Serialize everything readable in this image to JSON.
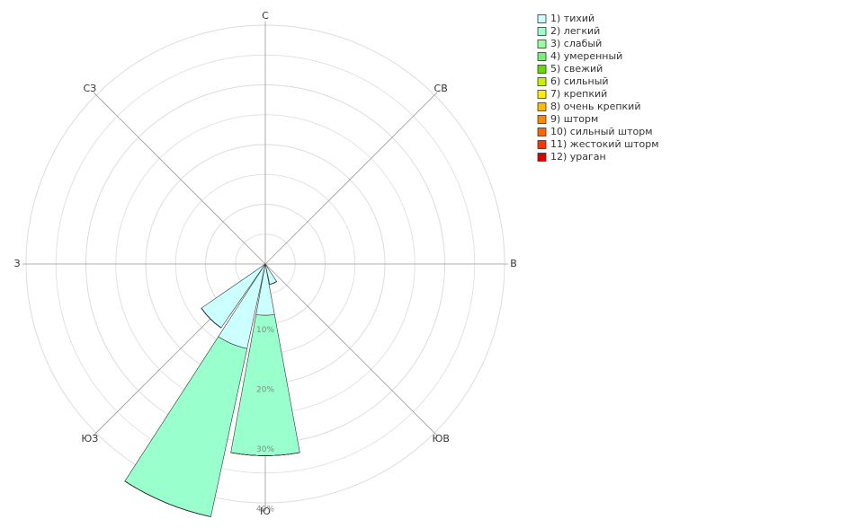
{
  "chart_data": {
    "type": "windrose",
    "categories": [
      "С",
      null,
      "СВ",
      null,
      "В",
      null,
      "ЮВ",
      null,
      "Ю",
      null,
      "ЮЗ",
      null,
      "З",
      null,
      "СЗ",
      null
    ],
    "rlim": [
      0,
      40
    ],
    "rticks": [
      {
        "value": 10,
        "label": "10%"
      },
      {
        "value": 20,
        "label": "20%"
      },
      {
        "value": 30,
        "label": "30%"
      },
      {
        "value": 40,
        "label": "40%"
      }
    ],
    "minor_rticks": [
      5,
      15,
      25,
      35
    ],
    "series": [
      {
        "name": "1) тихий",
        "color": "#ccffff",
        "values": [
          0,
          0,
          0,
          0,
          0,
          0,
          0,
          3.5,
          8.6,
          14.5,
          13,
          0,
          0,
          0,
          0,
          0
        ]
      },
      {
        "name": "2) легкий",
        "color": "#99ffcc",
        "values": [
          0,
          0,
          0,
          0,
          0,
          0,
          0,
          0,
          23.5,
          28.8,
          0,
          0,
          0,
          0,
          0,
          0
        ]
      },
      {
        "name": "3) слабый",
        "color": "#99ff99",
        "values": [
          0,
          0,
          0,
          0,
          0,
          0,
          0,
          0,
          0,
          0,
          0,
          0,
          0,
          0,
          0,
          0
        ]
      },
      {
        "name": "4) умеренный",
        "color": "#77ee77",
        "values": [
          0,
          0,
          0,
          0,
          0,
          0,
          0,
          0,
          0,
          0,
          0,
          0,
          0,
          0,
          0,
          0
        ]
      },
      {
        "name": "5) свежий",
        "color": "#66dd00",
        "values": [
          0,
          0,
          0,
          0,
          0,
          0,
          0,
          0,
          0,
          0,
          0,
          0,
          0,
          0,
          0,
          0
        ]
      },
      {
        "name": "6) сильный",
        "color": "#ccee00",
        "values": [
          0,
          0,
          0,
          0,
          0,
          0,
          0,
          0,
          0,
          0,
          0,
          0,
          0,
          0,
          0,
          0
        ]
      },
      {
        "name": "7) крепкий",
        "color": "#ffee00",
        "values": [
          0,
          0,
          0,
          0,
          0,
          0,
          0,
          0,
          0,
          0,
          0,
          0,
          0,
          0,
          0,
          0
        ]
      },
      {
        "name": "8) очень крепкий",
        "color": "#ffbb00",
        "values": [
          0,
          0,
          0,
          0,
          0,
          0,
          0,
          0,
          0,
          0,
          0,
          0,
          0,
          0,
          0,
          0
        ]
      },
      {
        "name": "9) шторм",
        "color": "#ff8800",
        "values": [
          0,
          0,
          0,
          0,
          0,
          0,
          0,
          0,
          0,
          0,
          0,
          0,
          0,
          0,
          0,
          0
        ]
      },
      {
        "name": "10) сильный шторм",
        "color": "#ff6600",
        "values": [
          0,
          0,
          0,
          0,
          0,
          0,
          0,
          0,
          0,
          0,
          0,
          0,
          0,
          0,
          0,
          0
        ]
      },
      {
        "name": "11) жестокий шторм",
        "color": "#ff3300",
        "values": [
          0,
          0,
          0,
          0,
          0,
          0,
          0,
          0,
          0,
          0,
          0,
          0,
          0,
          0,
          0,
          0
        ]
      },
      {
        "name": "12) ураган",
        "color": "#dd0000",
        "values": [
          0,
          0,
          0,
          0,
          0,
          0,
          0,
          0,
          0,
          0,
          0,
          0,
          0,
          0,
          0,
          0
        ]
      }
    ]
  }
}
